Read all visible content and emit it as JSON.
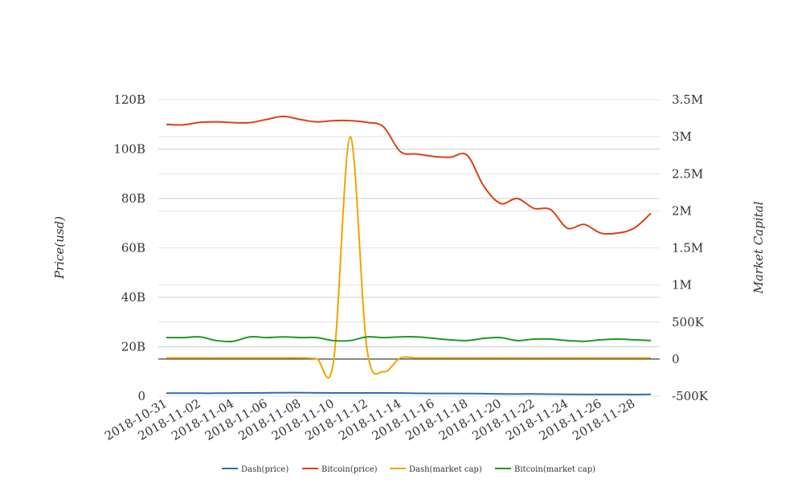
{
  "chart_data": {
    "type": "line",
    "title": "",
    "ylabel_left": "Price(usd)",
    "ylabel_right": "Market Capital",
    "left_axis": {
      "ticks": [
        0,
        20000000000,
        40000000000,
        60000000000,
        80000000000,
        100000000000,
        120000000000
      ],
      "tick_labels": [
        "0",
        "20B",
        "40B",
        "60B",
        "80B",
        "100B",
        "120B"
      ],
      "range": [
        0,
        120000000000
      ]
    },
    "right_axis": {
      "ticks": [
        -500000,
        0,
        500000,
        1000000,
        1500000,
        2000000,
        2500000,
        3000000,
        3500000
      ],
      "tick_labels": [
        "-500K",
        "0",
        "500K",
        "1M",
        "1.5M",
        "2M",
        "2.5M",
        "3M",
        "3.5M"
      ],
      "range": [
        -500000,
        3500000
      ]
    },
    "x_tick_labels": [
      "2018-10-31",
      "2018-11-02",
      "2018-11-04",
      "2018-11-06",
      "2018-11-08",
      "2018-11-10",
      "2018-11-12",
      "2018-11-14",
      "2018-11-16",
      "2018-11-18",
      "2018-11-20",
      "2018-11-22",
      "2018-11-24",
      "2018-11-26",
      "2018-11-28"
    ],
    "x": [
      "2018-10-31",
      "2018-11-01",
      "2018-11-02",
      "2018-11-03",
      "2018-11-04",
      "2018-11-05",
      "2018-11-06",
      "2018-11-07",
      "2018-11-08",
      "2018-11-09",
      "2018-11-10",
      "2018-11-11",
      "2018-11-12",
      "2018-11-13",
      "2018-11-14",
      "2018-11-15",
      "2018-11-16",
      "2018-11-17",
      "2018-11-18",
      "2018-11-19",
      "2018-11-20",
      "2018-11-21",
      "2018-11-22",
      "2018-11-23",
      "2018-11-24",
      "2018-11-25",
      "2018-11-26",
      "2018-11-27",
      "2018-11-28",
      "2018-11-29"
    ],
    "grid": true,
    "legend_position": "bottom",
    "series": [
      {
        "name": "Dash(price)",
        "axis": "left",
        "color": "#2f6db5",
        "values": [
          1200000000,
          1200000000,
          1200000000,
          1200000000,
          1250000000,
          1300000000,
          1350000000,
          1400000000,
          1400000000,
          1350000000,
          1300000000,
          1300000000,
          1300000000,
          1300000000,
          1250000000,
          1150000000,
          1100000000,
          1100000000,
          1050000000,
          1000000000,
          900000000,
          850000000,
          900000000,
          800000000,
          750000000,
          700000000,
          700000000,
          700000000,
          650000000,
          750000000
        ]
      },
      {
        "name": "Bitcoin(price)",
        "axis": "left",
        "color": "#d84315",
        "values": [
          110000000000,
          109800000000,
          110800000000,
          111000000000,
          110700000000,
          110700000000,
          112000000000,
          113200000000,
          112000000000,
          111000000000,
          111500000000,
          111500000000,
          110800000000,
          109000000000,
          99000000000,
          98000000000,
          97000000000,
          96700000000,
          97500000000,
          85000000000,
          78000000000,
          80000000000,
          76000000000,
          75500000000,
          68000000000,
          69500000000,
          66000000000,
          66000000000,
          68000000000,
          74000000000
        ]
      },
      {
        "name": "Dash(market cap)",
        "axis": "right",
        "color": "#f2a300",
        "values": [
          15000,
          15000,
          15000,
          15000,
          15000,
          15000,
          15000,
          15000,
          15000,
          5000,
          -40000,
          3000000,
          150000,
          -170000,
          15000,
          15000,
          15000,
          15000,
          15000,
          15000,
          15000,
          15000,
          15000,
          15000,
          15000,
          15000,
          15000,
          15000,
          15000,
          15000
        ]
      },
      {
        "name": "Bitcoin(market cap)",
        "axis": "right",
        "color": "#1e9a1e",
        "values": [
          290000,
          290000,
          300000,
          250000,
          240000,
          300000,
          290000,
          300000,
          290000,
          290000,
          250000,
          250000,
          300000,
          290000,
          300000,
          300000,
          280000,
          260000,
          250000,
          280000,
          290000,
          250000,
          270000,
          270000,
          250000,
          240000,
          260000,
          270000,
          260000,
          250000
        ]
      }
    ]
  }
}
